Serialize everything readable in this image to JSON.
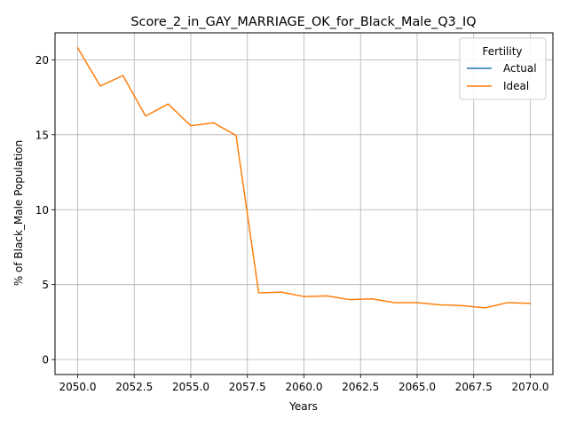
{
  "chart_data": {
    "type": "line",
    "title": "Score_2_in_GAY_MARRIAGE_OK_for_Black_Male_Q3_IQ",
    "xlabel": "Years",
    "ylabel": "% of Black_Male Population",
    "xlim": [
      2049.0,
      2071.0
    ],
    "ylim": [
      -1.0,
      21.8
    ],
    "x_ticks": [
      2050.0,
      2052.5,
      2055.0,
      2057.5,
      2060.0,
      2062.5,
      2065.0,
      2067.5,
      2070.0
    ],
    "x_tick_labels": [
      "2050.0",
      "2052.5",
      "2055.0",
      "2057.5",
      "2060.0",
      "2062.5",
      "2065.0",
      "2067.5",
      "2070.0"
    ],
    "y_ticks": [
      0,
      5,
      10,
      15,
      20
    ],
    "y_tick_labels": [
      "0",
      "5",
      "10",
      "15",
      "20"
    ],
    "grid": true,
    "legend": {
      "title": "Fertility",
      "position": "top-right"
    },
    "series": [
      {
        "name": "Actual",
        "color": "#1f77b4",
        "x": [],
        "values": []
      },
      {
        "name": "Ideal",
        "color": "#ff7f0e",
        "x": [
          2050,
          2051,
          2052,
          2053,
          2054,
          2055,
          2056,
          2057,
          2058,
          2059,
          2060,
          2061,
          2062,
          2063,
          2064,
          2065,
          2066,
          2067,
          2068,
          2069,
          2070
        ],
        "values": [
          20.8,
          18.25,
          18.95,
          16.25,
          17.05,
          15.6,
          15.8,
          14.95,
          4.45,
          4.5,
          4.2,
          4.25,
          4.0,
          4.05,
          3.8,
          3.8,
          3.65,
          3.6,
          3.45,
          3.8,
          3.75
        ]
      }
    ]
  }
}
